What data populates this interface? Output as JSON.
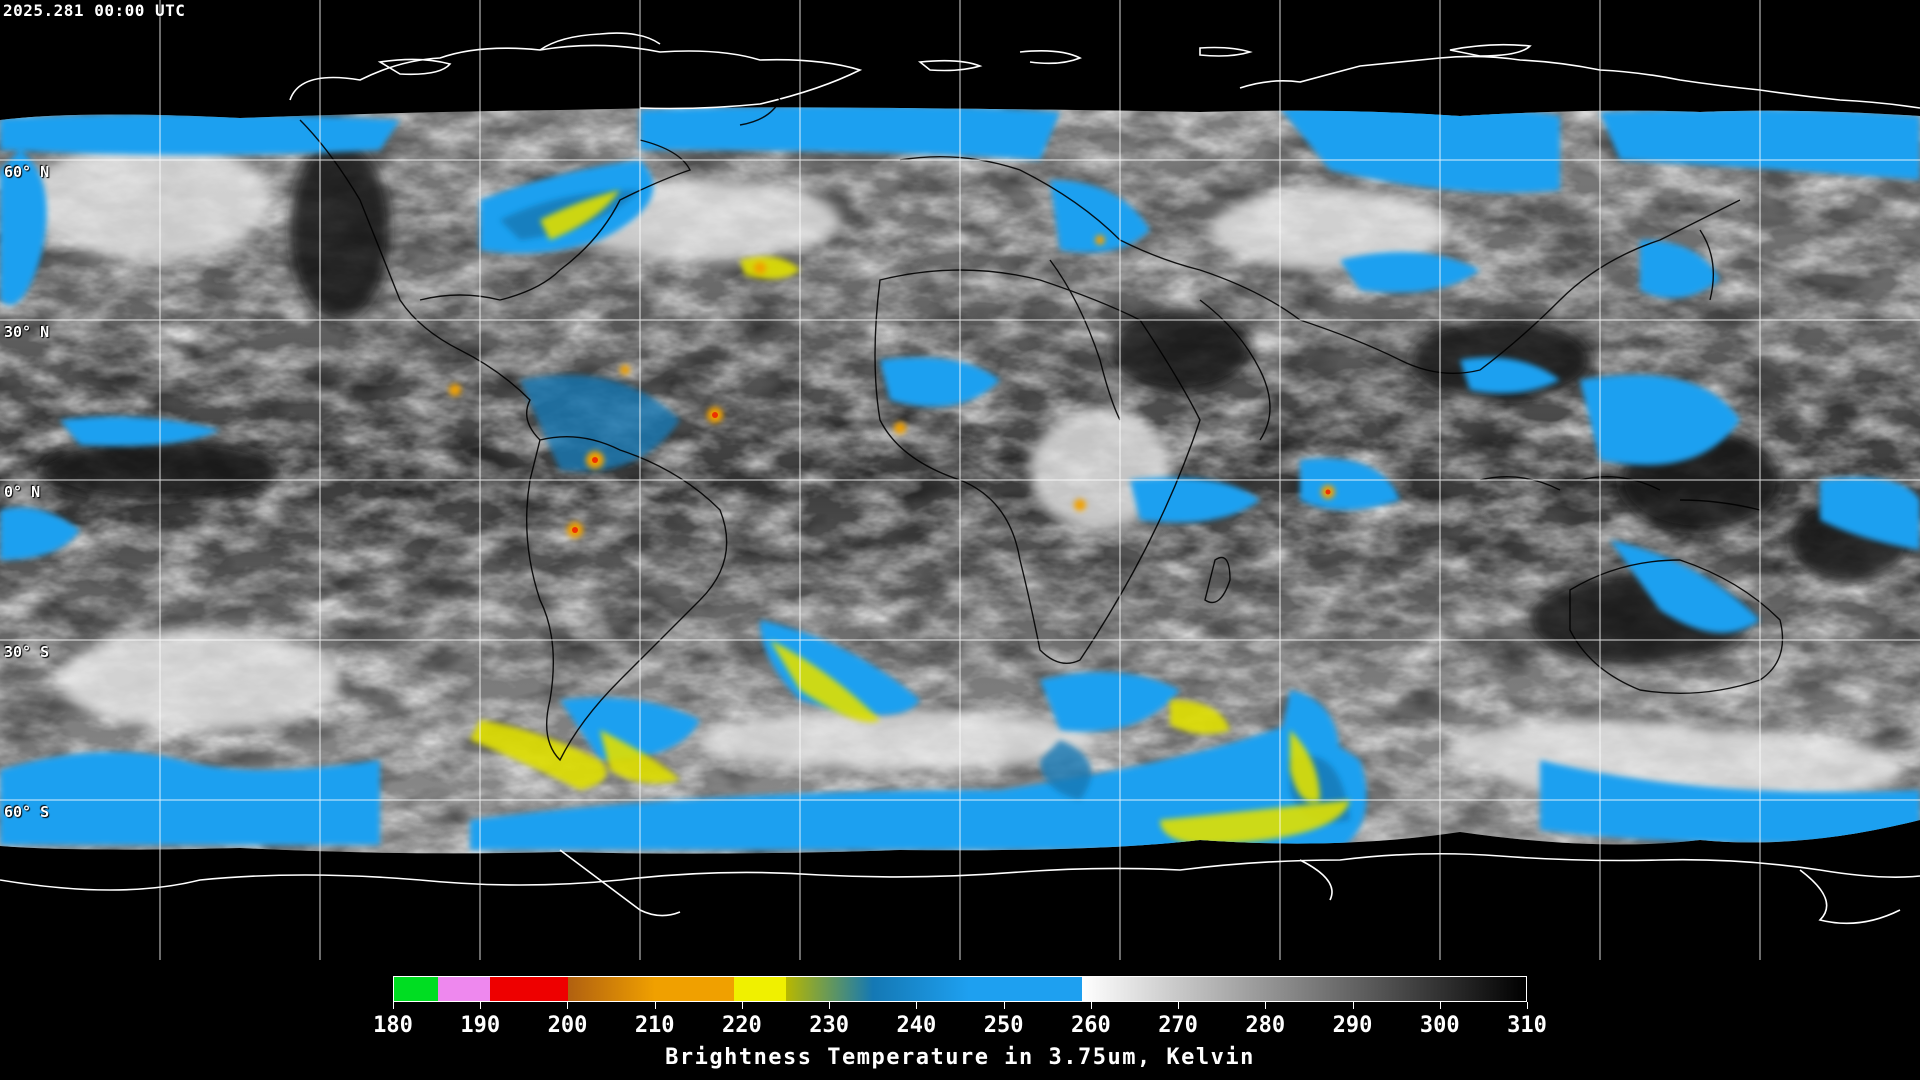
{
  "header": {
    "timestamp": "2025.281 00:00 UTC"
  },
  "map": {
    "projection": "equirectangular",
    "gridlines": true,
    "grid_color": "#ffffff",
    "coastline_color_over_clouds": "#000000",
    "coastline_color_over_space": "#ffffff",
    "latitude_labels": [
      "60° N",
      "30° N",
      "0° N",
      "30° S",
      "60° S"
    ]
  },
  "legend": {
    "title": "Brightness Temperature in 3.75um, Kelvin",
    "min": 180,
    "max": 310,
    "ticks": [
      "180",
      "190",
      "200",
      "210",
      "220",
      "230",
      "240",
      "250",
      "260",
      "270",
      "280",
      "290",
      "300",
      "310"
    ],
    "color_stops": [
      {
        "from": 180,
        "to": 185,
        "color": "#00dd22"
      },
      {
        "from": 185,
        "to": 191,
        "color": "#ee88ee"
      },
      {
        "from": 191,
        "to": 200,
        "color": "#ee0000"
      },
      {
        "from": 200,
        "to": 210,
        "color": "#b06010"
      },
      {
        "from": 210,
        "to": 219,
        "color": "#f0a000"
      },
      {
        "from": 219,
        "to": 225,
        "color": "#f0f000"
      },
      {
        "from": 225,
        "to": 235,
        "color": "#b8b800"
      },
      {
        "from": 235,
        "to": 246,
        "color": "#1478b4"
      },
      {
        "from": 246,
        "to": 259,
        "color": "#1ea0f0"
      },
      {
        "from": 259,
        "to": 310,
        "color": "gradient-white-to-black"
      }
    ]
  }
}
